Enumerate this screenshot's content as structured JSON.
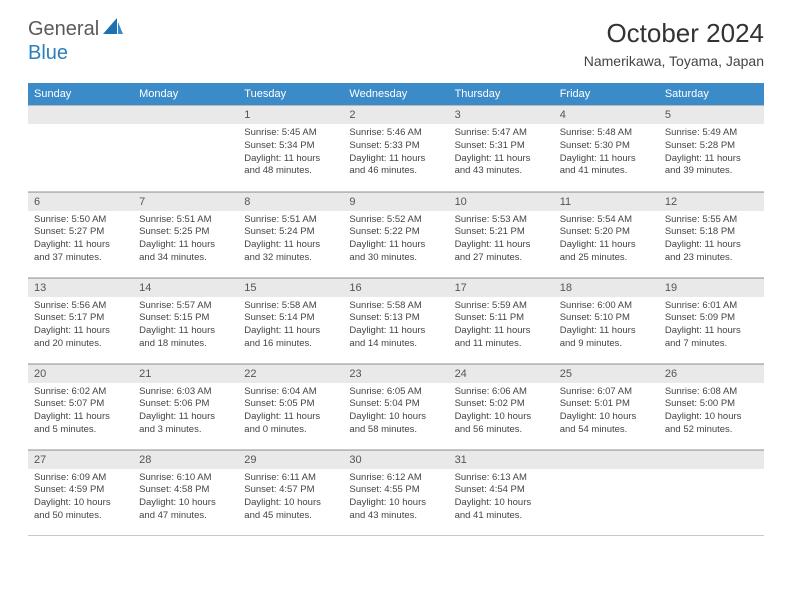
{
  "logo": {
    "part1": "General",
    "part2": "Blue"
  },
  "title": "October 2024",
  "location": "Namerikawa, Toyama, Japan",
  "colors": {
    "header_bg": "#3b8bc9",
    "header_text": "#ffffff",
    "daynum_bg": "#e9e9e9",
    "border": "#c8c8c8",
    "logo_gray": "#5a5a5a",
    "logo_blue": "#2a7fbf",
    "body_text": "#444444"
  },
  "fonts": {
    "title_size": 26,
    "location_size": 14,
    "header_size": 11,
    "body_size": 9.5
  },
  "day_headers": [
    "Sunday",
    "Monday",
    "Tuesday",
    "Wednesday",
    "Thursday",
    "Friday",
    "Saturday"
  ],
  "weeks": [
    [
      {
        "day": "",
        "sunrise": "",
        "sunset": "",
        "daylight": ""
      },
      {
        "day": "",
        "sunrise": "",
        "sunset": "",
        "daylight": ""
      },
      {
        "day": "1",
        "sunrise": "Sunrise: 5:45 AM",
        "sunset": "Sunset: 5:34 PM",
        "daylight": "Daylight: 11 hours and 48 minutes."
      },
      {
        "day": "2",
        "sunrise": "Sunrise: 5:46 AM",
        "sunset": "Sunset: 5:33 PM",
        "daylight": "Daylight: 11 hours and 46 minutes."
      },
      {
        "day": "3",
        "sunrise": "Sunrise: 5:47 AM",
        "sunset": "Sunset: 5:31 PM",
        "daylight": "Daylight: 11 hours and 43 minutes."
      },
      {
        "day": "4",
        "sunrise": "Sunrise: 5:48 AM",
        "sunset": "Sunset: 5:30 PM",
        "daylight": "Daylight: 11 hours and 41 minutes."
      },
      {
        "day": "5",
        "sunrise": "Sunrise: 5:49 AM",
        "sunset": "Sunset: 5:28 PM",
        "daylight": "Daylight: 11 hours and 39 minutes."
      }
    ],
    [
      {
        "day": "6",
        "sunrise": "Sunrise: 5:50 AM",
        "sunset": "Sunset: 5:27 PM",
        "daylight": "Daylight: 11 hours and 37 minutes."
      },
      {
        "day": "7",
        "sunrise": "Sunrise: 5:51 AM",
        "sunset": "Sunset: 5:25 PM",
        "daylight": "Daylight: 11 hours and 34 minutes."
      },
      {
        "day": "8",
        "sunrise": "Sunrise: 5:51 AM",
        "sunset": "Sunset: 5:24 PM",
        "daylight": "Daylight: 11 hours and 32 minutes."
      },
      {
        "day": "9",
        "sunrise": "Sunrise: 5:52 AM",
        "sunset": "Sunset: 5:22 PM",
        "daylight": "Daylight: 11 hours and 30 minutes."
      },
      {
        "day": "10",
        "sunrise": "Sunrise: 5:53 AM",
        "sunset": "Sunset: 5:21 PM",
        "daylight": "Daylight: 11 hours and 27 minutes."
      },
      {
        "day": "11",
        "sunrise": "Sunrise: 5:54 AM",
        "sunset": "Sunset: 5:20 PM",
        "daylight": "Daylight: 11 hours and 25 minutes."
      },
      {
        "day": "12",
        "sunrise": "Sunrise: 5:55 AM",
        "sunset": "Sunset: 5:18 PM",
        "daylight": "Daylight: 11 hours and 23 minutes."
      }
    ],
    [
      {
        "day": "13",
        "sunrise": "Sunrise: 5:56 AM",
        "sunset": "Sunset: 5:17 PM",
        "daylight": "Daylight: 11 hours and 20 minutes."
      },
      {
        "day": "14",
        "sunrise": "Sunrise: 5:57 AM",
        "sunset": "Sunset: 5:15 PM",
        "daylight": "Daylight: 11 hours and 18 minutes."
      },
      {
        "day": "15",
        "sunrise": "Sunrise: 5:58 AM",
        "sunset": "Sunset: 5:14 PM",
        "daylight": "Daylight: 11 hours and 16 minutes."
      },
      {
        "day": "16",
        "sunrise": "Sunrise: 5:58 AM",
        "sunset": "Sunset: 5:13 PM",
        "daylight": "Daylight: 11 hours and 14 minutes."
      },
      {
        "day": "17",
        "sunrise": "Sunrise: 5:59 AM",
        "sunset": "Sunset: 5:11 PM",
        "daylight": "Daylight: 11 hours and 11 minutes."
      },
      {
        "day": "18",
        "sunrise": "Sunrise: 6:00 AM",
        "sunset": "Sunset: 5:10 PM",
        "daylight": "Daylight: 11 hours and 9 minutes."
      },
      {
        "day": "19",
        "sunrise": "Sunrise: 6:01 AM",
        "sunset": "Sunset: 5:09 PM",
        "daylight": "Daylight: 11 hours and 7 minutes."
      }
    ],
    [
      {
        "day": "20",
        "sunrise": "Sunrise: 6:02 AM",
        "sunset": "Sunset: 5:07 PM",
        "daylight": "Daylight: 11 hours and 5 minutes."
      },
      {
        "day": "21",
        "sunrise": "Sunrise: 6:03 AM",
        "sunset": "Sunset: 5:06 PM",
        "daylight": "Daylight: 11 hours and 3 minutes."
      },
      {
        "day": "22",
        "sunrise": "Sunrise: 6:04 AM",
        "sunset": "Sunset: 5:05 PM",
        "daylight": "Daylight: 11 hours and 0 minutes."
      },
      {
        "day": "23",
        "sunrise": "Sunrise: 6:05 AM",
        "sunset": "Sunset: 5:04 PM",
        "daylight": "Daylight: 10 hours and 58 minutes."
      },
      {
        "day": "24",
        "sunrise": "Sunrise: 6:06 AM",
        "sunset": "Sunset: 5:02 PM",
        "daylight": "Daylight: 10 hours and 56 minutes."
      },
      {
        "day": "25",
        "sunrise": "Sunrise: 6:07 AM",
        "sunset": "Sunset: 5:01 PM",
        "daylight": "Daylight: 10 hours and 54 minutes."
      },
      {
        "day": "26",
        "sunrise": "Sunrise: 6:08 AM",
        "sunset": "Sunset: 5:00 PM",
        "daylight": "Daylight: 10 hours and 52 minutes."
      }
    ],
    [
      {
        "day": "27",
        "sunrise": "Sunrise: 6:09 AM",
        "sunset": "Sunset: 4:59 PM",
        "daylight": "Daylight: 10 hours and 50 minutes."
      },
      {
        "day": "28",
        "sunrise": "Sunrise: 6:10 AM",
        "sunset": "Sunset: 4:58 PM",
        "daylight": "Daylight: 10 hours and 47 minutes."
      },
      {
        "day": "29",
        "sunrise": "Sunrise: 6:11 AM",
        "sunset": "Sunset: 4:57 PM",
        "daylight": "Daylight: 10 hours and 45 minutes."
      },
      {
        "day": "30",
        "sunrise": "Sunrise: 6:12 AM",
        "sunset": "Sunset: 4:55 PM",
        "daylight": "Daylight: 10 hours and 43 minutes."
      },
      {
        "day": "31",
        "sunrise": "Sunrise: 6:13 AM",
        "sunset": "Sunset: 4:54 PM",
        "daylight": "Daylight: 10 hours and 41 minutes."
      },
      {
        "day": "",
        "sunrise": "",
        "sunset": "",
        "daylight": ""
      },
      {
        "day": "",
        "sunrise": "",
        "sunset": "",
        "daylight": ""
      }
    ]
  ]
}
